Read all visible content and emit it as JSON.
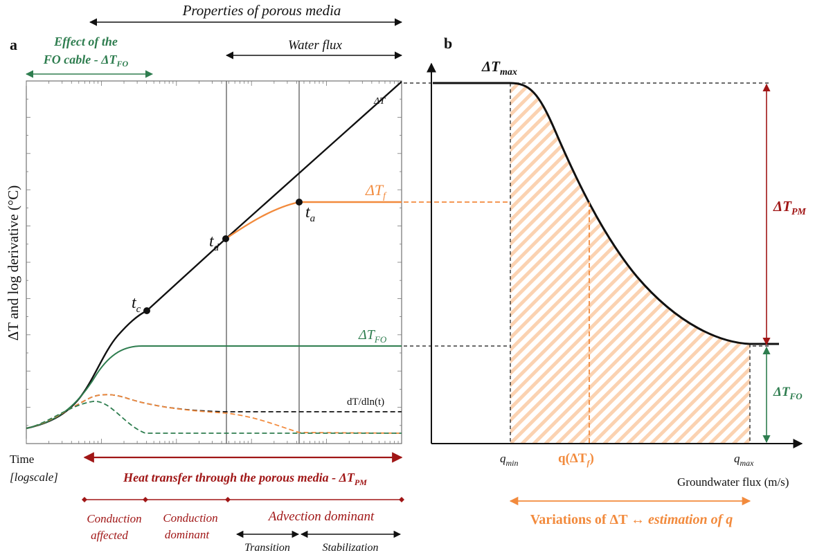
{
  "header": {
    "properties_label": "Properties of porous media",
    "water_flux_label": "Water flux",
    "fo_effect_line1": "Effect of the",
    "fo_effect_line2": "FO cable - ΔT",
    "fo_effect_sub": "FO"
  },
  "panel_a": {
    "panel_letter": "a",
    "y_axis_label": "ΔT and log derivative (°C)",
    "x_label_line1": "Time",
    "x_label_line2": "[logscale]",
    "curve_dT": "ΔT",
    "curve_dTf": "ΔT",
    "curve_dTf_sub": "f",
    "curve_dTFO": "ΔT",
    "curve_dTFO_sub": "FO",
    "curve_deriv": "dT/dln(t)",
    "point_tc": "t",
    "point_tc_sub": "c",
    "point_td": "t",
    "point_td_sub": "d",
    "point_ta": "t",
    "point_ta_sub": "a",
    "heat_transfer_label": "Heat transfer through the porous media - ΔT",
    "heat_transfer_sub": "PM",
    "phase_conduction_affected_1": "Conduction",
    "phase_conduction_affected_2": "affected",
    "phase_conduction_dominant_1": "Conduction",
    "phase_conduction_dominant_2": "dominant",
    "phase_advection": "Advection dominant",
    "phase_transition": "Transition",
    "phase_stabilization": "Stabilization"
  },
  "panel_b": {
    "panel_letter": "b",
    "dTmax": "ΔT",
    "dTmax_sub": "max",
    "dTPM": "ΔT",
    "dTPM_sub": "PM",
    "dTFO": "ΔT",
    "dTFO_sub": "FO",
    "qmin": "q",
    "qmin_sub": "min",
    "qmax": "q",
    "qmax_sub": "max",
    "q_of_dTf": "q(ΔT",
    "q_of_dTf_sub": "f",
    "q_of_dTf_close": ")",
    "x_axis_label": "Groundwater flux (m/s)",
    "variations_label_1": "Variations of ΔT ↔ ",
    "variations_label_2": "estimation of q"
  },
  "colors": {
    "black": "#111111",
    "orange": "#f28a3c",
    "green": "#2e7d4f",
    "darkred": "#a01616",
    "grey": "#777777",
    "hatch": "#fbd2b1"
  }
}
